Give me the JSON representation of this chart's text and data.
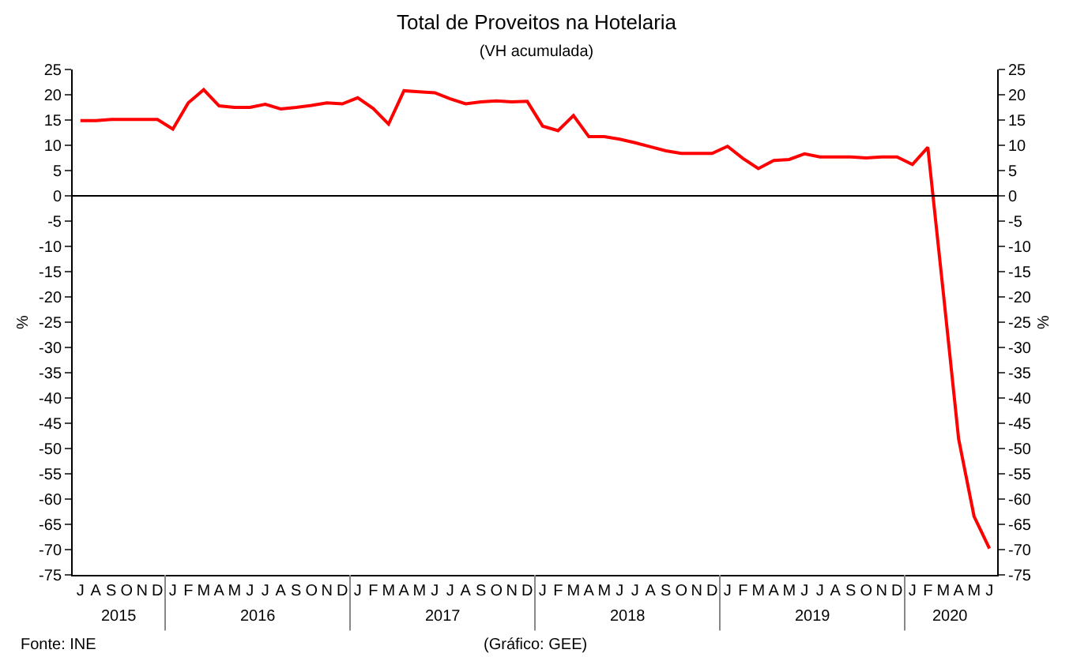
{
  "chart_data": {
    "type": "line",
    "title": "Total de Proveitos na Hotelaria",
    "subtitle": "(VH acumulada)",
    "ylabel": "%",
    "y2label": "%",
    "annotations": [
      "Fonte: INE",
      "(Gráfico: GEE)",
      "2015",
      "2016",
      "2017",
      "2018",
      "2019",
      "2020"
    ],
    "categories": [
      "J",
      "A",
      "S",
      "O",
      "N",
      "D",
      "J",
      "F",
      "M",
      "A",
      "M",
      "J",
      "J",
      "A",
      "S",
      "O",
      "N",
      "D",
      "J",
      "F",
      "M",
      "A",
      "M",
      "J",
      "J",
      "A",
      "S",
      "O",
      "N",
      "D",
      "J",
      "F",
      "M",
      "A",
      "M",
      "J",
      "J",
      "A",
      "S",
      "O",
      "N",
      "D",
      "J",
      "F",
      "M",
      "A",
      "M",
      "J",
      "J",
      "A",
      "S",
      "O",
      "N",
      "D",
      "J",
      "F",
      "M",
      "A",
      "M",
      "J"
    ],
    "series": [
      {
        "color": "#ff0000",
        "values": [
          14.9,
          14.9,
          15.1,
          15.1,
          15.1,
          15.1,
          13.2,
          18.4,
          21.0,
          17.8,
          17.5,
          17.5,
          18.1,
          17.2,
          17.5,
          17.9,
          18.4,
          18.2,
          19.4,
          17.3,
          14.2,
          20.8,
          20.6,
          20.4,
          19.2,
          18.2,
          18.6,
          18.8,
          18.6,
          18.7,
          13.8,
          12.9,
          15.9,
          11.7,
          11.7,
          11.2,
          10.5,
          9.7,
          8.9,
          8.4,
          8.4,
          8.4,
          9.8,
          7.4,
          5.4,
          7.0,
          7.2,
          8.3,
          7.7,
          7.7,
          7.7,
          7.5,
          7.7,
          7.7,
          6.2,
          9.6,
          -19,
          -48.1,
          -63.4,
          -69.8
        ]
      }
    ],
    "ylim": [
      -75,
      25
    ],
    "yticks": [
      -75,
      -70,
      -65,
      -60,
      -55,
      -50,
      -45,
      -40,
      -35,
      -30,
      -25,
      -20,
      -15,
      -10,
      -5,
      0,
      5,
      10,
      15,
      20,
      25
    ],
    "y2lim": [
      -75,
      25
    ],
    "y2ticks": [
      -75,
      -70,
      -65,
      -60,
      -55,
      -50,
      -45,
      -40,
      -35,
      -30,
      -25,
      -20,
      -15,
      -10,
      -5,
      0,
      5,
      10,
      15,
      20,
      25
    ],
    "ref_lines": [
      {
        "axis": "y",
        "value": 0,
        "color": "#000000",
        "line_style": "solid"
      }
    ],
    "grid": false,
    "marker": "none",
    "line_style": "solid"
  }
}
